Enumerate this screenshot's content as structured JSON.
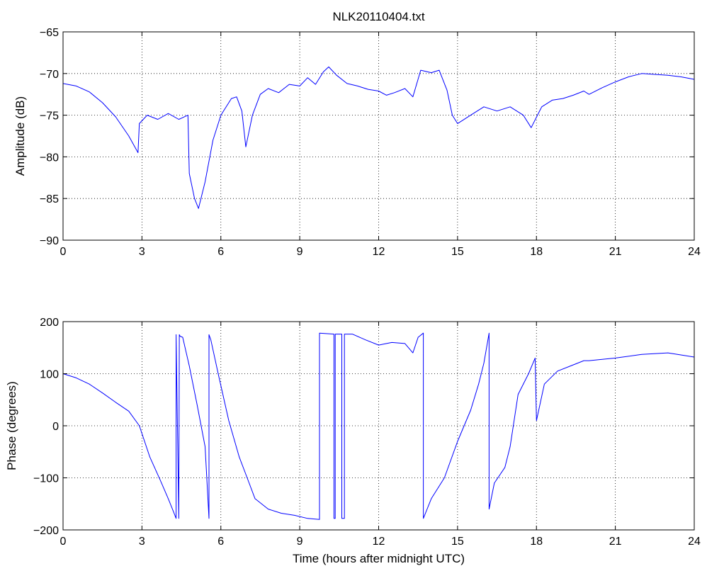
{
  "chart_data": [
    {
      "type": "line",
      "title": "NLK20110404.txt",
      "xlabel": "",
      "ylabel": "Amplitude (dB)",
      "xlim": [
        0,
        24
      ],
      "ylim": [
        -90,
        -65
      ],
      "xticks": [
        "0",
        "3",
        "6",
        "9",
        "12",
        "15",
        "18",
        "21",
        "24"
      ],
      "yticks": [
        "−65",
        "−70",
        "−75",
        "−80",
        "−85",
        "−90"
      ],
      "grid": true,
      "line_color": "#0000ff",
      "series": [
        {
          "x": [
            0,
            0.5,
            1,
            1.5,
            2,
            2.5,
            2.85,
            2.9,
            3.2,
            3.6,
            4.0,
            4.4,
            4.75,
            4.8,
            5.0,
            5.15,
            5.4,
            5.7,
            6.0,
            6.4,
            6.6,
            6.8,
            6.95,
            7.2,
            7.5,
            7.8,
            8.2,
            8.6,
            9.0,
            9.3,
            9.6,
            9.9,
            10.1,
            10.4,
            10.8,
            11.2,
            11.6,
            12.0,
            12.3,
            12.6,
            13.0,
            13.3,
            13.6,
            14.0,
            14.3,
            14.6,
            14.8,
            15.0,
            15.5,
            16.0,
            16.5,
            17.0,
            17.5,
            17.8,
            18.2,
            18.6,
            19.0,
            19.4,
            19.8,
            20.0,
            20.5,
            21.0,
            21.5,
            22.0,
            22.5,
            23.0,
            23.5,
            24.0
          ],
          "y": [
            -71.2,
            -71.5,
            -72.2,
            -73.5,
            -75.2,
            -77.5,
            -79.5,
            -76,
            -75,
            -75.5,
            -74.8,
            -75.5,
            -75,
            -82,
            -85,
            -86.2,
            -83,
            -78,
            -75,
            -73,
            -72.8,
            -74.5,
            -78.8,
            -75,
            -72.5,
            -71.8,
            -72.3,
            -71.3,
            -71.5,
            -70.5,
            -71.3,
            -69.8,
            -69.2,
            -70.2,
            -71.2,
            -71.5,
            -71.9,
            -72.1,
            -72.6,
            -72.3,
            -71.8,
            -72.8,
            -69.6,
            -69.9,
            -69.6,
            -72,
            -75,
            -76,
            -75,
            -74,
            -74.5,
            -74,
            -75,
            -76.5,
            -74,
            -73.2,
            -73,
            -72.6,
            -72.1,
            -72.5,
            -71.7,
            -71,
            -70.4,
            -70,
            -70.1,
            -70.2,
            -70.4,
            -70.7
          ]
        }
      ]
    },
    {
      "type": "line",
      "title": "",
      "xlabel": "Time (hours after midnight UTC)",
      "ylabel": "Phase (degrees)",
      "xlim": [
        0,
        24
      ],
      "ylim": [
        -200,
        200
      ],
      "xticks": [
        "0",
        "3",
        "6",
        "9",
        "12",
        "15",
        "18",
        "21",
        "24"
      ],
      "yticks": [
        "200",
        "100",
        "0",
        "−100",
        "−200"
      ],
      "grid": true,
      "line_color": "#0000ff",
      "series": [
        {
          "x": [
            0,
            0.5,
            1,
            1.5,
            2,
            2.5,
            2.9,
            3.3,
            3.7,
            4.0,
            4.2,
            4.3,
            4.3,
            4.4,
            4.42,
            4.45,
            4.55,
            4.8,
            5.1,
            5.4,
            5.55,
            5.55,
            5.62,
            5.9,
            6.3,
            6.7,
            7.0,
            7.3,
            7.8,
            8.3,
            8.8,
            9.3,
            9.75,
            9.75,
            10.0,
            10.3,
            10.3,
            10.35,
            10.35,
            10.6,
            10.6,
            10.7,
            10.7,
            11.0,
            11.5,
            12.0,
            12.5,
            13.0,
            13.3,
            13.5,
            13.7,
            13.7,
            14.0,
            14.5,
            15.0,
            15.5,
            15.8,
            16.0,
            16.2,
            16.2,
            16.4,
            16.8,
            17.0,
            17.3,
            17.7,
            17.95,
            18.0,
            18.3,
            18.8,
            19.3,
            19.8,
            20.0,
            21.0,
            22.0,
            23.0,
            24.0
          ],
          "y": [
            100,
            92,
            80,
            63,
            45,
            28,
            0,
            -60,
            -105,
            -140,
            -165,
            -178,
            175,
            -178,
            175,
            172,
            170,
            115,
            40,
            -40,
            -178,
            175,
            165,
            100,
            10,
            -60,
            -100,
            -140,
            -160,
            -168,
            -172,
            -178,
            -180,
            178,
            177,
            176,
            -178,
            -178,
            176,
            176,
            -178,
            -178,
            176,
            176,
            165,
            155,
            160,
            158,
            140,
            170,
            178,
            -178,
            -140,
            -100,
            -30,
            30,
            80,
            120,
            178,
            -160,
            -110,
            -80,
            -40,
            60,
            100,
            130,
            10,
            80,
            105,
            115,
            125,
            125,
            130,
            137,
            140,
            132
          ]
        }
      ]
    }
  ]
}
